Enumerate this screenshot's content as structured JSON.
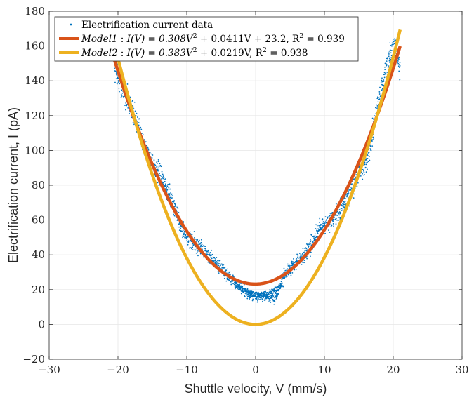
{
  "chart_data": {
    "type": "scatter",
    "title": "",
    "xlabel": "Shuttle velocity, V (mm/s)",
    "ylabel": "Electrification current, I (pA)",
    "xlim": [
      -30,
      30
    ],
    "ylim": [
      -20,
      180
    ],
    "xticks": [
      -30,
      -20,
      -10,
      0,
      10,
      20,
      30
    ],
    "xtick_labels": [
      "−30",
      "−20",
      "−10",
      "0",
      "10",
      "20",
      "30"
    ],
    "yticks": [
      -20,
      0,
      20,
      40,
      60,
      80,
      100,
      120,
      140,
      160,
      180
    ],
    "ytick_labels": [
      "−20",
      "0",
      "20",
      "40",
      "60",
      "80",
      "100",
      "120",
      "140",
      "160",
      "180"
    ],
    "grid": true,
    "legend_position": "top-left",
    "series": [
      {
        "name": "Electrification current data",
        "kind": "scatter",
        "color": "#0072BD",
        "x": [
          -20.5,
          -20.0,
          -19.0,
          -18.0,
          -17.0,
          -16.0,
          -15.0,
          -14.0,
          -13.0,
          -12.0,
          -11.0,
          -10.0,
          -9.0,
          -8.0,
          -7.0,
          -6.0,
          -5.0,
          -4.0,
          -3.0,
          -2.0,
          -1.0,
          0.0,
          1.0,
          2.0,
          3.0,
          4.0,
          5.0,
          6.0,
          7.0,
          8.0,
          9.0,
          10.0,
          11.0,
          12.0,
          13.0,
          14.0,
          15.0,
          16.0,
          17.0,
          18.0,
          19.0,
          20.0,
          21.0
        ],
        "y": [
          148,
          142,
          133,
          124,
          112,
          102,
          92,
          86,
          78,
          70,
          58,
          50,
          47,
          44,
          40,
          36,
          33,
          28,
          24,
          20,
          17,
          16,
          16,
          15,
          16,
          28,
          32,
          36,
          40,
          45,
          53,
          58,
          60,
          64,
          70,
          78,
          88,
          92,
          110,
          130,
          148,
          160,
          150
        ]
      },
      {
        "name": "Model1 : I(V) = 0.308V² + 0.0411V + 23.2, R² = 0.939",
        "kind": "line",
        "color": "#D95319",
        "a": 0.308,
        "b": 0.0411,
        "c": 23.2,
        "x_range": [
          -20.5,
          21
        ]
      },
      {
        "name": "Model2 : I(V) = 0.383V² + 0.0219V, R² = 0.938",
        "kind": "line",
        "color": "#EDB120",
        "a": 0.383,
        "b": 0.0219,
        "c": 0,
        "x_range": [
          -20.5,
          21
        ]
      }
    ],
    "legend": {
      "entry_1": "Electrification current data",
      "entry_2_label": "Model1",
      "entry_2_formula": "I(V) = 0.308V",
      "entry_2_tail": " + 0.0411V + 23.2, R",
      "entry_2_end": " = 0.939",
      "entry_3_label": "Model2",
      "entry_3_formula": "I(V) = 0.383V",
      "entry_3_tail": " + 0.0219V, R",
      "entry_3_end": " = 0.938",
      "exponent": "2",
      "separator": " : "
    }
  }
}
